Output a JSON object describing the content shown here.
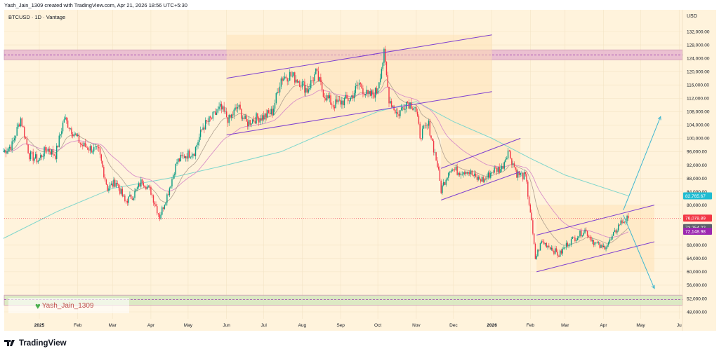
{
  "header": {
    "attribution": "Yash_Jain_1309 created with TradingView.com, Apr 21, 2026 18:56 UTC+5:30"
  },
  "symbol_line": "BTCUSD · 1D · Vantage",
  "currency": "USD",
  "watermark": "Yash_Jain_1309",
  "brand": "TradingView",
  "colors": {
    "background": "#fff3dc",
    "up": "#089981",
    "down": "#f23645",
    "ma200": "#7fd6cc",
    "ma_fast": "#b0a090",
    "ma_slow": "#d98fc7",
    "channel": "#7e3fd0",
    "arrow": "#3fb7d0",
    "resistance_zone": "#e8b8d0",
    "support_zone": "#d6e8c0"
  },
  "chart_data": {
    "type": "candlestick",
    "title": "BTCUSD · 1D · Vantage",
    "xlabel": "",
    "ylabel": "",
    "ylim": [
      44000,
      136000
    ],
    "x_ticks": [
      "2025",
      "Feb",
      "Mar",
      "Apr",
      "May",
      "Jun",
      "Jul",
      "Aug",
      "Sep",
      "Oct",
      "Nov",
      "Dec",
      "2026",
      "Feb",
      "Mar",
      "Apr",
      "May",
      "Ju"
    ],
    "x_tick_dates": [
      "2025-01-01",
      "2025-02-01",
      "2025-03-01",
      "2025-04-01",
      "2025-05-01",
      "2025-06-01",
      "2025-07-01",
      "2025-08-01",
      "2025-09-01",
      "2025-10-01",
      "2025-11-01",
      "2025-12-01",
      "2026-01-01",
      "2026-02-01",
      "2026-03-01",
      "2026-04-01",
      "2026-05-01",
      "2026-06-01"
    ],
    "y_ticks": [
      132000,
      128000,
      124000,
      120000,
      116000,
      112000,
      108000,
      104000,
      100000,
      96000,
      92000,
      88000,
      84000,
      80000,
      68000,
      64000,
      60000,
      56000,
      52000,
      48000
    ],
    "y_tick_labels": [
      "132,000.00",
      "128,000.00",
      "124,000.00",
      "120,000.00",
      "116,000.00",
      "112,000.00",
      "108,000.00",
      "104,000.00",
      "100,000.00",
      "96,000.00",
      "92,000.00",
      "88,000.00",
      "84,000.00",
      "80,000.00",
      "68,000.00",
      "64,000.00",
      "60,000.00",
      "56,000.00",
      "52,000.00",
      "48,000.00"
    ],
    "price_labels": [
      {
        "value": 82765.67,
        "text": "82,765.67",
        "color": "#1fbcd2"
      },
      {
        "value": 76078.89,
        "text": "76,078.89",
        "color": "#f23645"
      },
      {
        "value": 73254.22,
        "text": "73,254.22",
        "color": "#5d606b"
      },
      {
        "value": 72148.98,
        "text": "72,148.98",
        "color": "#9c27b0"
      }
    ],
    "last_price": 76078.89,
    "closes": [
      [
        "2024-12-03",
        96000
      ],
      [
        "2024-12-10",
        98000
      ],
      [
        "2024-12-17",
        106000
      ],
      [
        "2024-12-24",
        95000
      ],
      [
        "2024-12-31",
        93500
      ],
      [
        "2025-01-07",
        97000
      ],
      [
        "2025-01-14",
        95000
      ],
      [
        "2025-01-21",
        106000
      ],
      [
        "2025-01-28",
        102000
      ],
      [
        "2025-02-04",
        98000
      ],
      [
        "2025-02-11",
        97000
      ],
      [
        "2025-02-18",
        96000
      ],
      [
        "2025-02-25",
        85000
      ],
      [
        "2025-03-04",
        87000
      ],
      [
        "2025-03-11",
        81000
      ],
      [
        "2025-03-18",
        83000
      ],
      [
        "2025-03-25",
        87500
      ],
      [
        "2025-04-01",
        84000
      ],
      [
        "2025-04-08",
        76500
      ],
      [
        "2025-04-15",
        84000
      ],
      [
        "2025-04-22",
        93000
      ],
      [
        "2025-04-29",
        95000
      ],
      [
        "2025-05-06",
        96000
      ],
      [
        "2025-05-13",
        103500
      ],
      [
        "2025-05-20",
        106000
      ],
      [
        "2025-05-27",
        109000
      ],
      [
        "2025-06-03",
        105500
      ],
      [
        "2025-06-10",
        109500
      ],
      [
        "2025-06-17",
        104500
      ],
      [
        "2025-06-24",
        106000
      ],
      [
        "2025-07-01",
        106500
      ],
      [
        "2025-07-08",
        108000
      ],
      [
        "2025-07-15",
        118000
      ],
      [
        "2025-07-22",
        119000
      ],
      [
        "2025-07-29",
        117500
      ],
      [
        "2025-08-05",
        114500
      ],
      [
        "2025-08-12",
        119500
      ],
      [
        "2025-08-19",
        113000
      ],
      [
        "2025-08-26",
        110000
      ],
      [
        "2025-09-02",
        111000
      ],
      [
        "2025-09-09",
        112000
      ],
      [
        "2025-09-16",
        116500
      ],
      [
        "2025-09-23",
        112500
      ],
      [
        "2025-09-30",
        114000
      ],
      [
        "2025-10-06",
        125000
      ],
      [
        "2025-10-10",
        112000
      ],
      [
        "2025-10-17",
        107000
      ],
      [
        "2025-10-24",
        111000
      ],
      [
        "2025-10-31",
        109500
      ],
      [
        "2025-11-04",
        101000
      ],
      [
        "2025-11-11",
        104000
      ],
      [
        "2025-11-18",
        92000
      ],
      [
        "2025-11-21",
        84500
      ],
      [
        "2025-11-28",
        91000
      ],
      [
        "2025-12-05",
        90000
      ],
      [
        "2025-12-12",
        90500
      ],
      [
        "2025-12-19",
        88000
      ],
      [
        "2025-12-26",
        87500
      ],
      [
        "2026-01-02",
        90500
      ],
      [
        "2026-01-09",
        91000
      ],
      [
        "2026-01-14",
        96500
      ],
      [
        "2026-01-21",
        89500
      ],
      [
        "2026-01-28",
        88500
      ],
      [
        "2026-02-01",
        78000
      ],
      [
        "2026-02-05",
        64000
      ],
      [
        "2026-02-10",
        69000
      ],
      [
        "2026-02-17",
        67500
      ],
      [
        "2026-02-24",
        65000
      ],
      [
        "2026-03-03",
        68500
      ],
      [
        "2026-03-10",
        70500
      ],
      [
        "2026-03-17",
        72500
      ],
      [
        "2026-03-24",
        69000
      ],
      [
        "2026-03-31",
        67000
      ],
      [
        "2026-04-07",
        69500
      ],
      [
        "2026-04-14",
        74500
      ],
      [
        "2026-04-21",
        76079
      ]
    ],
    "ma200": [
      [
        "2024-12-03",
        70000
      ],
      [
        "2025-01-15",
        78000
      ],
      [
        "2025-03-01",
        85000
      ],
      [
        "2025-04-15",
        88000
      ],
      [
        "2025-06-01",
        92000
      ],
      [
        "2025-07-15",
        96000
      ],
      [
        "2025-08-15",
        101000
      ],
      [
        "2025-10-01",
        108000
      ],
      [
        "2025-11-01",
        111000
      ],
      [
        "2025-12-01",
        105000
      ],
      [
        "2026-01-01",
        100000
      ],
      [
        "2026-02-01",
        94000
      ],
      [
        "2026-03-01",
        89000
      ],
      [
        "2026-04-21",
        82765.67
      ]
    ],
    "zones": [
      {
        "kind": "resistance",
        "from": 123500,
        "to": 126500,
        "dashed_at": 125000
      },
      {
        "kind": "support",
        "from": 50000,
        "to": 53000,
        "dashed_at": 51700
      }
    ],
    "channels": [
      {
        "start": "2025-06-01",
        "end": "2026-01-01",
        "upper": [
          118000,
          131000
        ],
        "lower": [
          101000,
          114000
        ]
      },
      {
        "start": "2025-11-21",
        "end": "2026-01-24",
        "upper": [
          91000,
          100000
        ],
        "lower": [
          81500,
          90000
        ]
      },
      {
        "start": "2026-02-06",
        "end": "2026-05-12",
        "upper": [
          71000,
          80000
        ],
        "lower": [
          60000,
          69000
        ]
      }
    ],
    "projections": [
      {
        "from": [
          "2026-04-17",
          78500
        ],
        "to": [
          "2026-05-17",
          106500
        ]
      },
      {
        "from": [
          "2026-04-17",
          77000
        ],
        "to": [
          "2026-05-12",
          55000
        ]
      }
    ]
  }
}
